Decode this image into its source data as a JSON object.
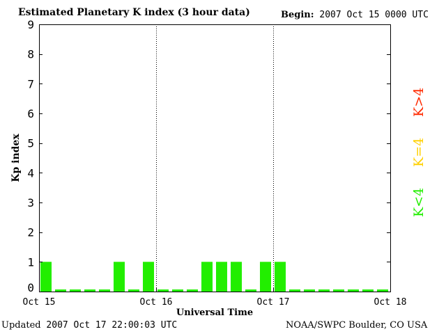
{
  "header": {
    "title": "Estimated Planetary K index (3 hour data)",
    "begin_label": "Begin:",
    "begin_value": "2007 Oct 15 0000 UTC"
  },
  "footer": {
    "updated_label": "Updated",
    "updated_value": "2007 Oct 17 22:00:03 UTC",
    "source": "NOAA/SWPC Boulder, CO USA"
  },
  "legend": {
    "high": {
      "label": "K>4",
      "color": "#ff2a00"
    },
    "equal": {
      "label": "K=4",
      "color": "#ffd000"
    },
    "low": {
      "label": "K<4",
      "color": "#22ee00"
    }
  },
  "chart_data": {
    "type": "bar",
    "title": "Estimated Planetary K index (3 hour data)",
    "xlabel": "Universal Time",
    "ylabel": "Kp index",
    "ylim": [
      0,
      9
    ],
    "yticks": [
      0,
      1,
      2,
      3,
      4,
      5,
      6,
      7,
      8,
      9
    ],
    "xlim": [
      0,
      24
    ],
    "xtick_positions": [
      0,
      8,
      16,
      24
    ],
    "xtick_labels": [
      "Oct 15",
      "Oct 16",
      "Oct 17",
      "Oct 18"
    ],
    "day_dividers": [
      8,
      16
    ],
    "interval_hours": 3,
    "values": [
      1,
      0,
      0,
      0,
      0,
      1,
      0,
      1,
      0,
      0,
      0,
      1,
      1,
      1,
      0,
      1,
      1,
      0,
      0,
      0,
      0,
      0,
      0,
      0
    ],
    "bar_color": "#22ee00",
    "grid": false
  }
}
